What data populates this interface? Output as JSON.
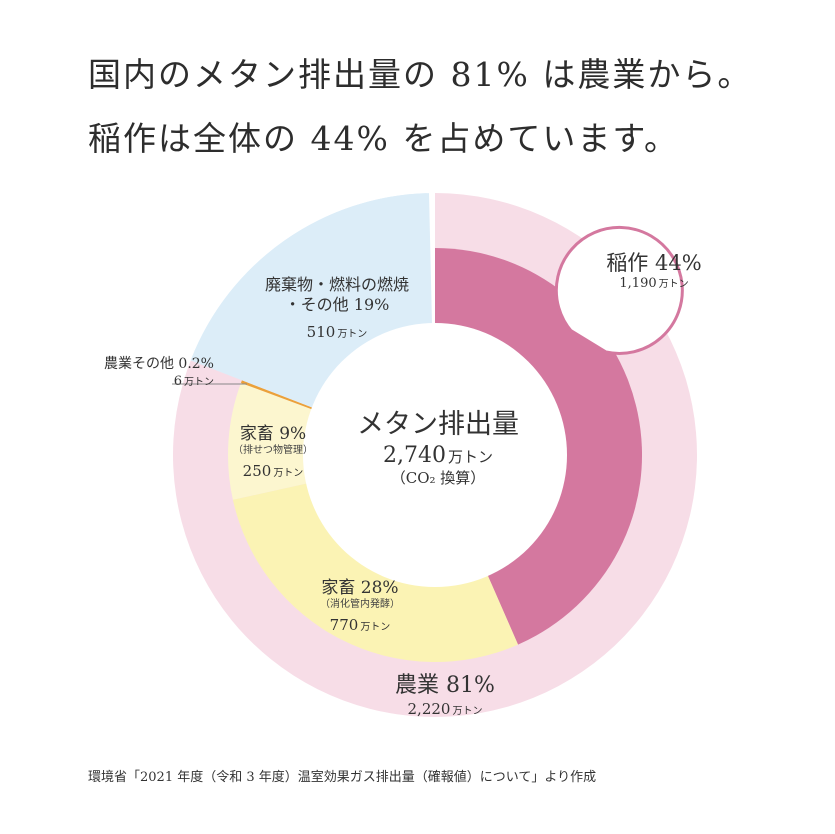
{
  "headline": {
    "line1": "国内のメタン排出量の 81% は農業から。",
    "line2": "稲作は全体の 44% を占めています。"
  },
  "center": {
    "title": "メタン排出量",
    "total": "2,740",
    "unit": "万トン",
    "note": "（CO₂ 換算）"
  },
  "labels": {
    "waste": {
      "line1": "廃棄物・燃料の燃焼",
      "line2": "・その他 19%",
      "amount": "510",
      "unit": "万トン"
    },
    "agri_other": {
      "name": "農業その他 0.2%",
      "amount": "6",
      "unit": "万トン"
    },
    "manure": {
      "name": "家畜 9%",
      "sub": "（排せつ物管理）",
      "amount": "250",
      "unit": "万トン"
    },
    "enteric": {
      "name": "家畜 28%",
      "sub": "（消化管内発酵）",
      "amount": "770",
      "unit": "万トン"
    },
    "agriculture": {
      "name": "農業 81%",
      "amount": "2,220",
      "unit": "万トン"
    },
    "rice": {
      "name": "稲作 44%",
      "amount": "1,190",
      "unit": "万トン"
    }
  },
  "source": "環境省「2021 年度（令和 3 年度）温室効果ガス排出量（確報値）について」より作成",
  "colors": {
    "rice": "#d4789f",
    "enteric": "#fbf3b4",
    "manure": "#fcf6cf",
    "agri_other": "#eba13a",
    "waste": "#dcedf8",
    "agri_ring": "#f7dde7",
    "callout_border": "#d4789f"
  },
  "chart_data": {
    "type": "pie",
    "unit": "万トン",
    "total": 2740,
    "inner_series": [
      {
        "name": "稲作",
        "value": 1190,
        "percent": 44
      },
      {
        "name": "家畜（消化管内発酵）",
        "value": 770,
        "percent": 28
      },
      {
        "name": "家畜（排せつ物管理）",
        "value": 250,
        "percent": 9
      },
      {
        "name": "農業その他",
        "value": 6,
        "percent": 0.2
      },
      {
        "name": "廃棄物・燃料の燃焼・その他",
        "value": 510,
        "percent": 19
      }
    ],
    "outer_series": [
      {
        "name": "農業",
        "value": 2220,
        "percent": 81
      },
      {
        "name": "廃棄物・燃料の燃焼・その他",
        "value": 510,
        "percent": 19
      }
    ]
  }
}
